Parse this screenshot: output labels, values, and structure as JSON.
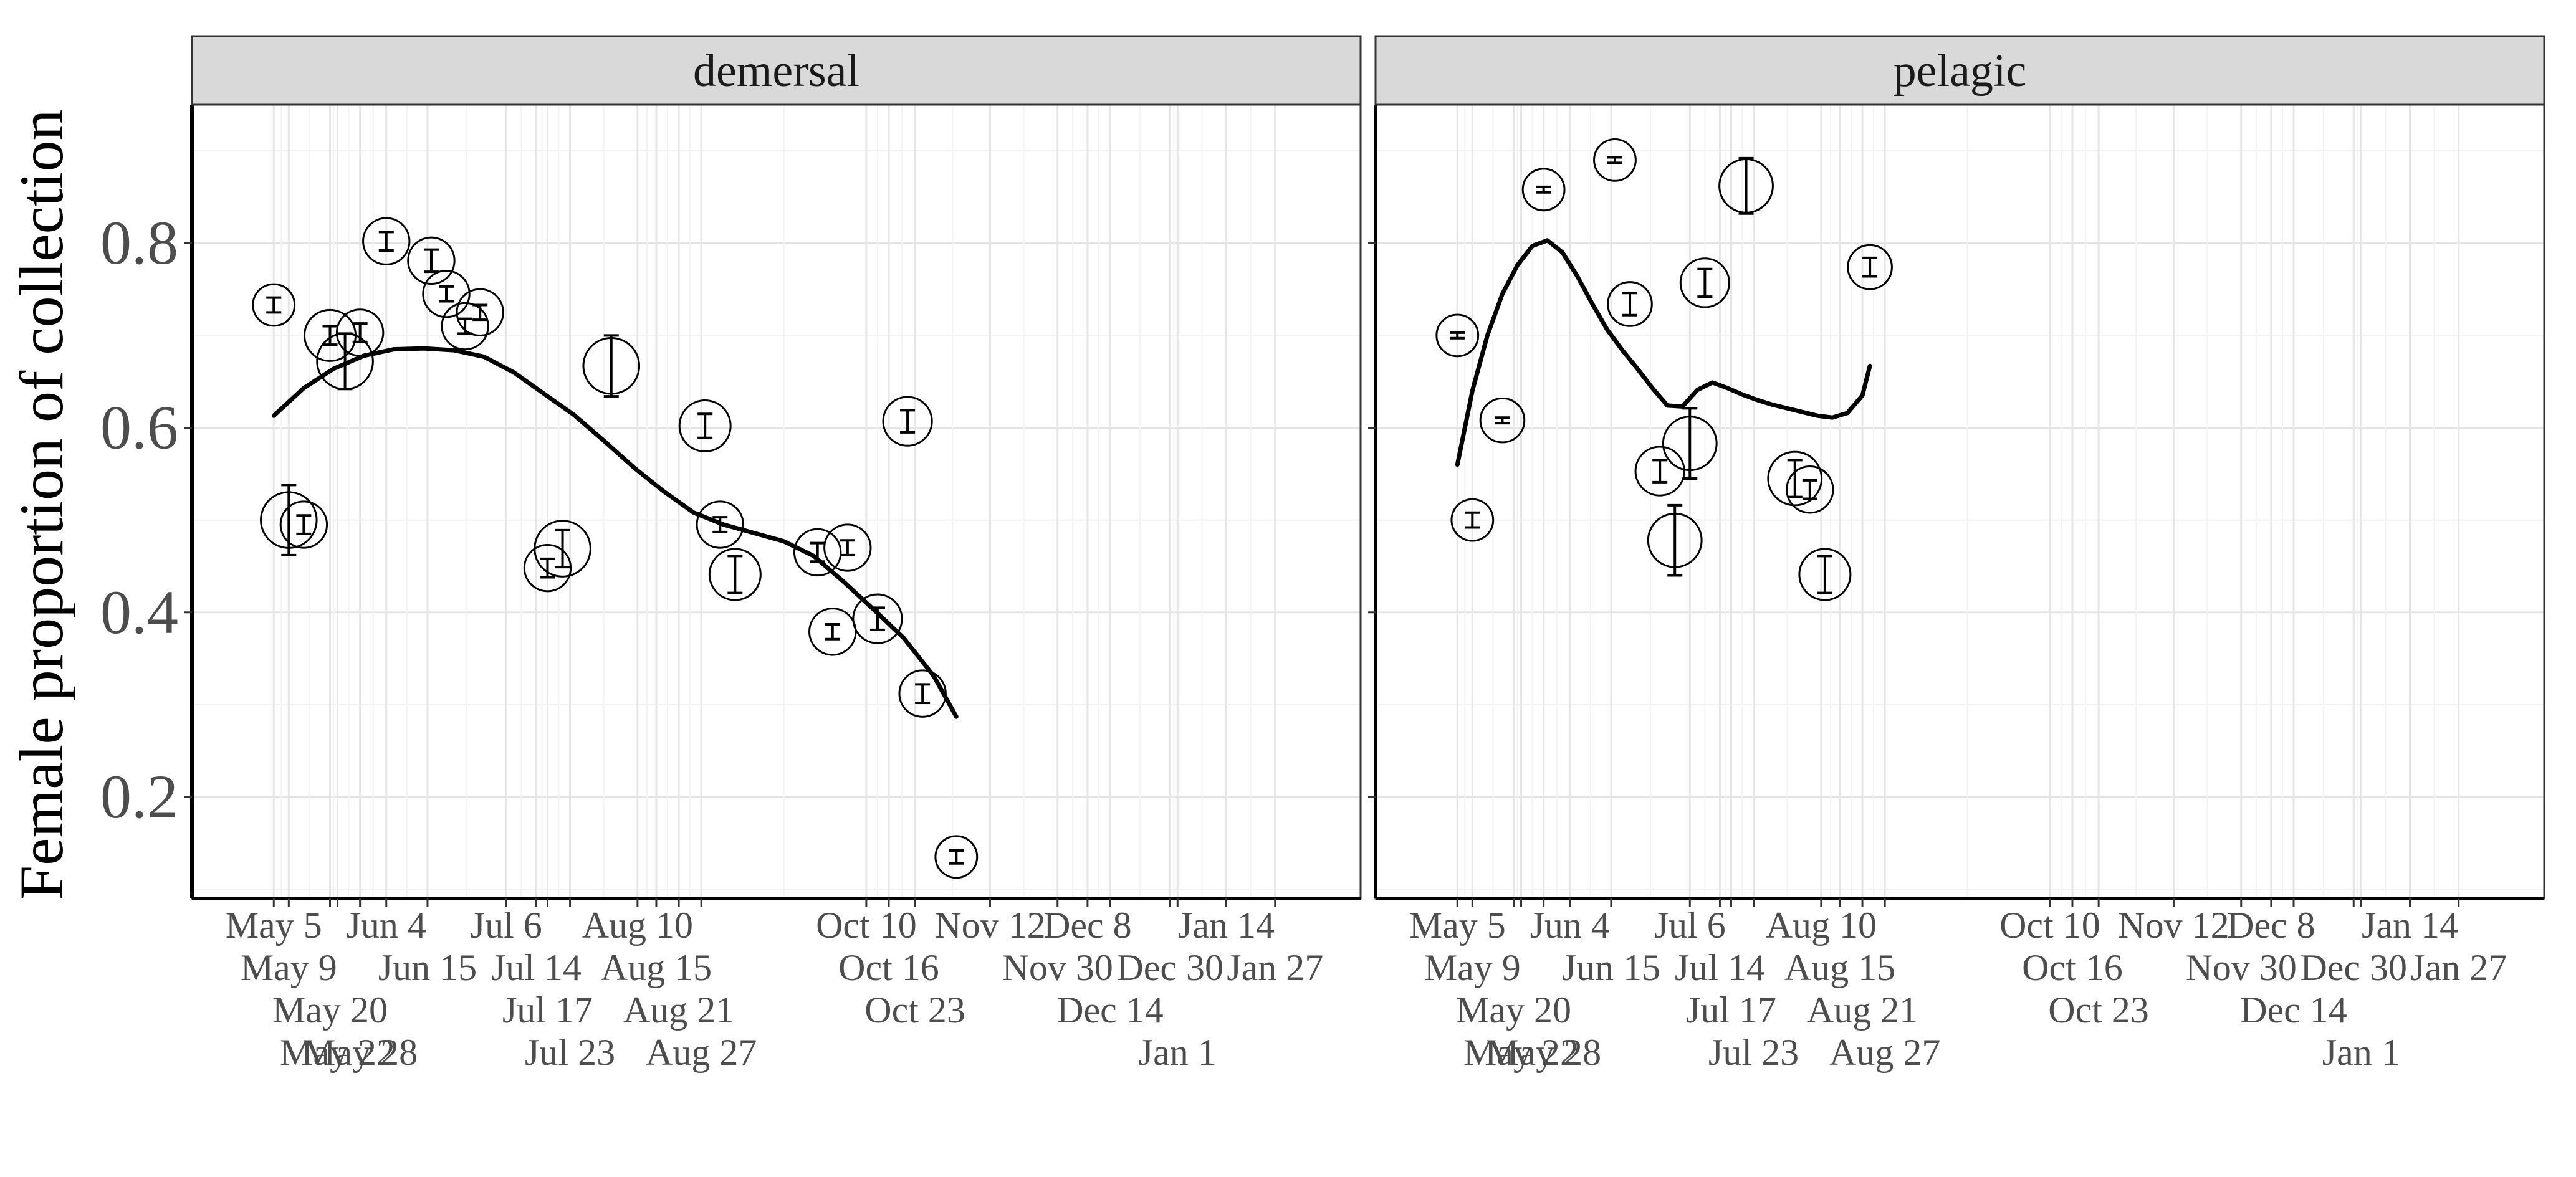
{
  "chart_data": {
    "type": "scatter",
    "ylabel": "Female proportion of collection",
    "xlabel": "",
    "ylim": [
      0.09,
      0.95
    ],
    "y_ticks": [
      0.2,
      0.4,
      0.6,
      0.8
    ],
    "grid": true,
    "x_tick_dates": [
      "2019-05-05",
      "2019-05-09",
      "2019-05-20",
      "2019-05-22",
      "2019-05-28",
      "2019-06-04",
      "2019-06-15",
      "2019-07-06",
      "2019-07-14",
      "2019-07-17",
      "2019-07-23",
      "2019-08-10",
      "2019-08-15",
      "2019-08-21",
      "2019-08-27",
      "2019-10-10",
      "2019-10-16",
      "2019-10-23",
      "2019-11-12",
      "2019-11-30",
      "2019-12-08",
      "2019-12-14",
      "2019-12-30",
      "2020-01-01",
      "2020-01-14",
      "2020-01-27"
    ],
    "x_tick_labels": [
      "May 5",
      "May 9",
      "May 20",
      "May 22",
      "May 28",
      "Jun 4",
      "Jun 15",
      "Jul 6",
      "Jul 14",
      "Jul 17",
      "Jul 23",
      "Aug 10",
      "Aug 15",
      "Aug 21",
      "Aug 27",
      "Oct 10",
      "Oct 16",
      "Oct 23",
      "Nov 12",
      "Nov 30",
      "Dec 8",
      "Dec 14",
      "Dec 30",
      "Jan 1",
      "Jan 14",
      "Jan 27"
    ],
    "xlim": [
      "2019-04-20",
      "2020-02-12"
    ],
    "panels": [
      {
        "strip": "demersal",
        "points": [
          {
            "date": "2019-05-05",
            "y": 0.733,
            "err": 0.008,
            "size": 0.3
          },
          {
            "date": "2019-05-09",
            "y": 0.5,
            "err": 0.038,
            "size": 0.6
          },
          {
            "date": "2019-05-13",
            "y": 0.495,
            "err": 0.01,
            "size": 0.4
          },
          {
            "date": "2019-05-20",
            "y": 0.7,
            "err": 0.01,
            "size": 0.5
          },
          {
            "date": "2019-05-24",
            "y": 0.672,
            "err": 0.03,
            "size": 0.6
          },
          {
            "date": "2019-05-28",
            "y": 0.703,
            "err": 0.01,
            "size": 0.4
          },
          {
            "date": "2019-06-04",
            "y": 0.802,
            "err": 0.01,
            "size": 0.4
          },
          {
            "date": "2019-06-16",
            "y": 0.781,
            "err": 0.012,
            "size": 0.4
          },
          {
            "date": "2019-06-20",
            "y": 0.745,
            "err": 0.008,
            "size": 0.4
          },
          {
            "date": "2019-06-25",
            "y": 0.71,
            "err": 0.008,
            "size": 0.4
          },
          {
            "date": "2019-06-29",
            "y": 0.725,
            "err": 0.008,
            "size": 0.4
          },
          {
            "date": "2019-07-17",
            "y": 0.448,
            "err": 0.01,
            "size": 0.4
          },
          {
            "date": "2019-07-21",
            "y": 0.469,
            "err": 0.02,
            "size": 0.6
          },
          {
            "date": "2019-08-03",
            "y": 0.667,
            "err": 0.033,
            "size": 0.6
          },
          {
            "date": "2019-08-28",
            "y": 0.602,
            "err": 0.013,
            "size": 0.5
          },
          {
            "date": "2019-09-01",
            "y": 0.495,
            "err": 0.008,
            "size": 0.4
          },
          {
            "date": "2019-09-05",
            "y": 0.441,
            "err": 0.02,
            "size": 0.5
          },
          {
            "date": "2019-09-27",
            "y": 0.465,
            "err": 0.01,
            "size": 0.4
          },
          {
            "date": "2019-10-01",
            "y": 0.379,
            "err": 0.008,
            "size": 0.4
          },
          {
            "date": "2019-10-05",
            "y": 0.47,
            "err": 0.008,
            "size": 0.4
          },
          {
            "date": "2019-10-13",
            "y": 0.393,
            "err": 0.012,
            "size": 0.45
          },
          {
            "date": "2019-10-21",
            "y": 0.607,
            "err": 0.012,
            "size": 0.45
          },
          {
            "date": "2019-10-25",
            "y": 0.312,
            "err": 0.01,
            "size": 0.4
          },
          {
            "date": "2019-11-03",
            "y": 0.135,
            "err": 0.007,
            "size": 0.3
          }
        ],
        "smooth": {
          "dates": [
            "2019-05-05",
            "2019-05-13",
            "2019-05-21",
            "2019-05-29",
            "2019-06-06",
            "2019-06-14",
            "2019-06-22",
            "2019-06-30",
            "2019-07-08",
            "2019-07-16",
            "2019-07-24",
            "2019-08-01",
            "2019-08-09",
            "2019-08-17",
            "2019-08-25",
            "2019-09-02",
            "2019-09-10",
            "2019-09-18",
            "2019-09-26",
            "2019-10-04",
            "2019-10-12",
            "2019-10-20",
            "2019-10-28",
            "2019-11-03"
          ],
          "y": [
            0.613,
            0.643,
            0.664,
            0.678,
            0.685,
            0.686,
            0.684,
            0.677,
            0.66,
            0.637,
            0.614,
            0.586,
            0.557,
            0.531,
            0.508,
            0.495,
            0.486,
            0.477,
            0.461,
            0.433,
            0.403,
            0.372,
            0.331,
            0.287
          ]
        }
      },
      {
        "strip": "pelagic",
        "points": [
          {
            "date": "2019-05-05",
            "y": 0.7,
            "err": 0.003,
            "size": 0.3
          },
          {
            "date": "2019-05-09",
            "y": 0.5,
            "err": 0.008,
            "size": 0.3
          },
          {
            "date": "2019-05-17",
            "y": 0.608,
            "err": 0.003,
            "size": 0.35
          },
          {
            "date": "2019-05-28",
            "y": 0.858,
            "err": 0.003,
            "size": 0.3
          },
          {
            "date": "2019-06-16",
            "y": 0.89,
            "err": 0.003,
            "size": 0.3
          },
          {
            "date": "2019-06-20",
            "y": 0.734,
            "err": 0.012,
            "size": 0.35
          },
          {
            "date": "2019-06-28",
            "y": 0.553,
            "err": 0.012,
            "size": 0.45
          },
          {
            "date": "2019-07-02",
            "y": 0.478,
            "err": 0.038,
            "size": 0.55
          },
          {
            "date": "2019-07-06",
            "y": 0.583,
            "err": 0.038,
            "size": 0.55
          },
          {
            "date": "2019-07-10",
            "y": 0.757,
            "err": 0.015,
            "size": 0.45
          },
          {
            "date": "2019-07-21",
            "y": 0.862,
            "err": 0.03,
            "size": 0.55
          },
          {
            "date": "2019-08-03",
            "y": 0.545,
            "err": 0.02,
            "size": 0.55
          },
          {
            "date": "2019-08-07",
            "y": 0.533,
            "err": 0.01,
            "size": 0.4
          },
          {
            "date": "2019-08-11",
            "y": 0.441,
            "err": 0.02,
            "size": 0.5
          },
          {
            "date": "2019-08-23",
            "y": 0.774,
            "err": 0.01,
            "size": 0.35
          }
        ],
        "smooth": {
          "dates": [
            "2019-05-05",
            "2019-05-09",
            "2019-05-13",
            "2019-05-17",
            "2019-05-21",
            "2019-05-25",
            "2019-05-29",
            "2019-06-02",
            "2019-06-06",
            "2019-06-10",
            "2019-06-14",
            "2019-06-18",
            "2019-06-22",
            "2019-06-26",
            "2019-06-30",
            "2019-07-04",
            "2019-07-08",
            "2019-07-12",
            "2019-07-16",
            "2019-07-20",
            "2019-07-24",
            "2019-07-28",
            "2019-08-01",
            "2019-08-05",
            "2019-08-09",
            "2019-08-13",
            "2019-08-17",
            "2019-08-21",
            "2019-08-23"
          ],
          "y": [
            0.56,
            0.64,
            0.7,
            0.745,
            0.776,
            0.797,
            0.803,
            0.79,
            0.764,
            0.734,
            0.706,
            0.684,
            0.664,
            0.643,
            0.624,
            0.623,
            0.641,
            0.649,
            0.643,
            0.636,
            0.63,
            0.625,
            0.621,
            0.617,
            0.613,
            0.611,
            0.616,
            0.635,
            0.667
          ]
        }
      }
    ]
  }
}
